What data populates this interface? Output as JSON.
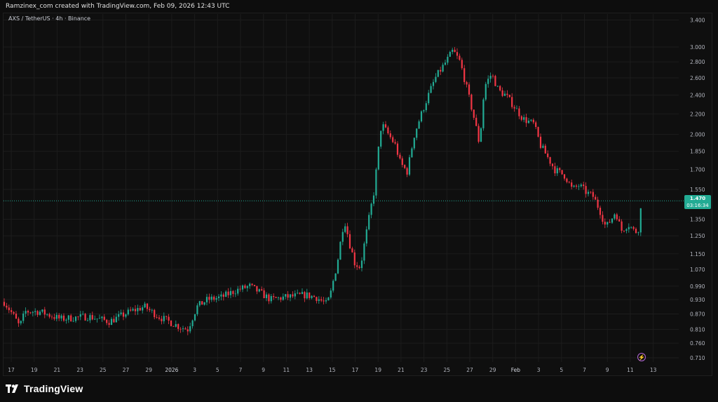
{
  "header": {
    "caption": "Ramzinex_com created with TradingView.com, Feb 09, 2026 12:43 UTC"
  },
  "symbol": {
    "label": "AXS / TetherUS · 4h · Binance"
  },
  "brand": {
    "name": "TradingView"
  },
  "colors": {
    "up": "#22ab94",
    "down": "#f23645",
    "grid": "#1c1c1c",
    "axis_text": "#b2b5be",
    "background": "#0f0f0f",
    "current_price_line": "#22ab94",
    "alert_icon": "#b266d6"
  },
  "icons": {
    "brand": "tradingview-logo-icon",
    "alert": "lightning-bolt-icon"
  },
  "current_price": {
    "value": "1.470",
    "countdown": "03:16:34"
  },
  "chart_data": {
    "type": "candlestick",
    "title": "",
    "timeframe": "4h",
    "y_scale": "log",
    "y_ticks": [
      "3.400",
      "3.000",
      "2.800",
      "2.600",
      "2.400",
      "2.200",
      "2.000",
      "1.850",
      "1.700",
      "1.550",
      "1.350",
      "1.250",
      "1.150",
      "1.070",
      "0.990",
      "0.930",
      "0.870",
      "0.810",
      "0.760",
      "0.710"
    ],
    "x_ticks": [
      "17",
      "19",
      "21",
      "23",
      "25",
      "27",
      "29",
      "2026",
      "3",
      "5",
      "7",
      "9",
      "11",
      "13",
      "15",
      "17",
      "19",
      "21",
      "23",
      "25",
      "27",
      "29",
      "Feb",
      "3",
      "5",
      "7",
      "9",
      "11",
      "13"
    ],
    "grid": true,
    "anchors_close": [
      [
        0,
        0.92
      ],
      [
        14,
        0.86
      ],
      [
        22,
        0.82
      ],
      [
        30,
        0.88
      ],
      [
        50,
        0.88
      ],
      [
        80,
        0.85
      ],
      [
        120,
        0.86
      ],
      [
        150,
        0.84
      ],
      [
        180,
        0.88
      ],
      [
        200,
        0.9
      ],
      [
        220,
        0.86
      ],
      [
        250,
        0.82
      ],
      [
        262,
        0.81
      ],
      [
        275,
        0.9
      ],
      [
        290,
        0.93
      ],
      [
        310,
        0.94
      ],
      [
        330,
        0.97
      ],
      [
        350,
        0.99
      ],
      [
        365,
        0.96
      ],
      [
        380,
        0.93
      ],
      [
        400,
        0.94
      ],
      [
        430,
        0.95
      ],
      [
        445,
        0.94
      ],
      [
        460,
        0.91
      ],
      [
        465,
        0.95
      ],
      [
        475,
        1.1
      ],
      [
        485,
        1.35
      ],
      [
        493,
        1.2
      ],
      [
        500,
        1.1
      ],
      [
        508,
        1.08
      ],
      [
        518,
        1.3
      ],
      [
        528,
        1.55
      ],
      [
        538,
        2.1
      ],
      [
        548,
        2.0
      ],
      [
        558,
        1.9
      ],
      [
        565,
        1.75
      ],
      [
        575,
        1.68
      ],
      [
        585,
        2.0
      ],
      [
        600,
        2.3
      ],
      [
        615,
        2.6
      ],
      [
        630,
        2.8
      ],
      [
        640,
        2.95
      ],
      [
        650,
        2.8
      ],
      [
        662,
        2.4
      ],
      [
        672,
        2.1
      ],
      [
        678,
        1.9
      ],
      [
        685,
        2.5
      ],
      [
        695,
        2.65
      ],
      [
        705,
        2.45
      ],
      [
        715,
        2.4
      ],
      [
        725,
        2.3
      ],
      [
        740,
        2.15
      ],
      [
        755,
        2.1
      ],
      [
        765,
        1.9
      ],
      [
        775,
        1.8
      ],
      [
        785,
        1.7
      ],
      [
        800,
        1.65
      ],
      [
        810,
        1.55
      ],
      [
        820,
        1.58
      ],
      [
        830,
        1.53
      ],
      [
        840,
        1.5
      ],
      [
        850,
        1.4
      ],
      [
        858,
        1.3
      ],
      [
        866,
        1.35
      ],
      [
        872,
        1.4
      ],
      [
        880,
        1.28
      ],
      [
        890,
        1.32
      ],
      [
        900,
        1.27
      ],
      [
        906,
        1.3
      ],
      [
        910,
        1.55
      ],
      [
        915,
        1.47
      ]
    ]
  }
}
